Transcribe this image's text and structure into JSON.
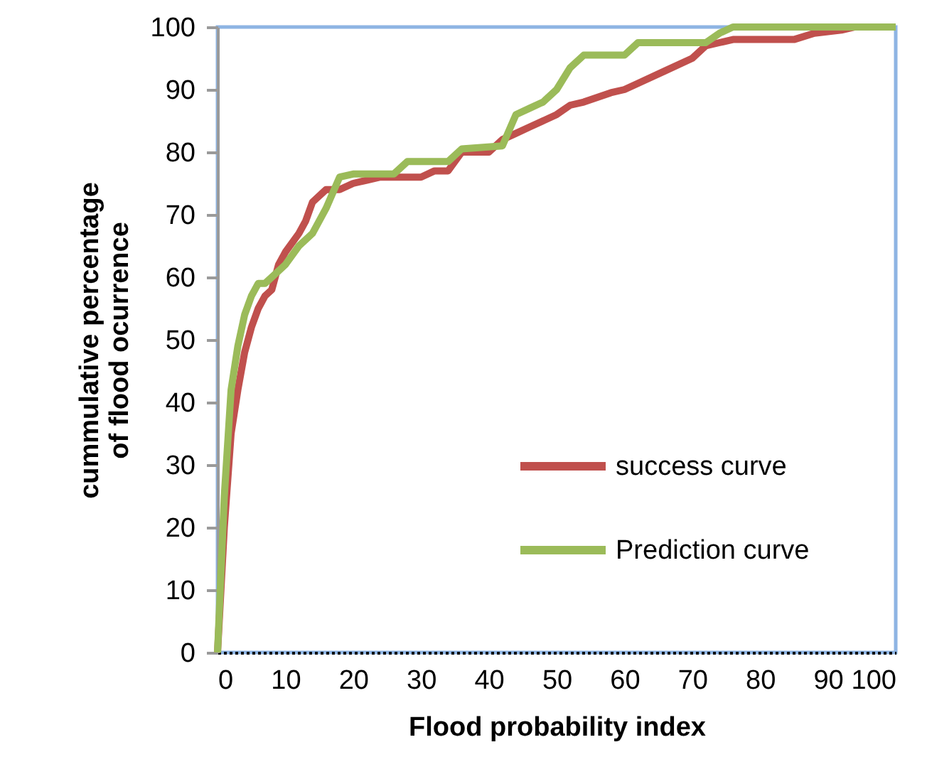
{
  "chart_data": {
    "type": "line",
    "xlabel": "Flood probability index",
    "ylabel": "cummulative percentage of flood ocurrence",
    "xlim": [
      0,
      100
    ],
    "ylim": [
      0,
      100
    ],
    "xticks": [
      0,
      10,
      20,
      30,
      40,
      50,
      60,
      70,
      80,
      90,
      100
    ],
    "yticks": [
      0,
      10,
      20,
      30,
      40,
      50,
      60,
      70,
      80,
      90,
      100
    ],
    "grid": false,
    "legend": "bottom right",
    "line_style": "solid",
    "marker": "none",
    "series": [
      {
        "name": "success curve",
        "color": "#c0504d",
        "x": [
          0,
          1,
          2,
          3,
          4,
          5,
          6,
          7,
          8,
          9,
          10,
          12,
          13,
          14,
          16,
          18,
          20,
          22,
          24,
          30,
          32,
          34,
          36,
          40,
          42,
          44,
          46,
          48,
          50,
          52,
          54,
          58,
          60,
          62,
          66,
          70,
          72,
          74,
          76,
          85,
          88,
          92,
          94
        ],
        "values": [
          0,
          20,
          35,
          42,
          48,
          52,
          55,
          57,
          58,
          62,
          64,
          67,
          69,
          72,
          74,
          74,
          75,
          75.5,
          76,
          76,
          77,
          77,
          80,
          80,
          82,
          83,
          84,
          85,
          86,
          87.5,
          88,
          89.5,
          90,
          91,
          93,
          95,
          97,
          97.5,
          98,
          98,
          99,
          99.5,
          100
        ]
      },
      {
        "name": "Prediction curve",
        "color": "#9bbb59",
        "x": [
          0,
          1,
          2,
          3,
          4,
          5,
          6,
          7,
          8,
          10,
          12,
          14,
          16,
          18,
          20,
          26,
          28,
          34,
          36,
          42,
          44,
          46,
          48,
          50,
          52,
          54,
          60,
          62,
          72,
          74,
          76,
          100
        ],
        "values": [
          0,
          25,
          42,
          49,
          54,
          57,
          59,
          59,
          60,
          62,
          65,
          67,
          71,
          76,
          76.5,
          76.5,
          78.5,
          78.5,
          80.5,
          81,
          86,
          87,
          88,
          90,
          93.5,
          95.5,
          95.5,
          97.5,
          97.5,
          99,
          100,
          100
        ]
      }
    ]
  }
}
